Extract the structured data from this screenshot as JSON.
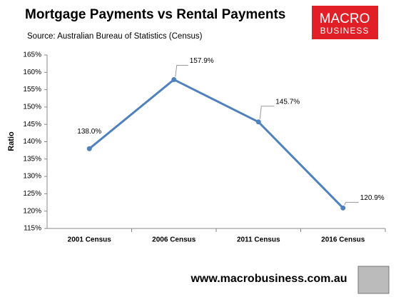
{
  "chart_data": {
    "type": "line",
    "title": "Mortgage Payments vs Rental Payments",
    "subtitle": "Source: Australian Bureau of Statistics (Census)",
    "y_label": "Ratio",
    "categories": [
      "2001 Census",
      "2006 Census",
      "2011 Census",
      "2016 Census"
    ],
    "series": [
      {
        "color": "#4f81bd",
        "values": [
          138.0,
          157.9,
          145.7,
          120.9
        ],
        "value_labels": [
          "138.0%",
          "157.9%",
          "145.7%",
          "120.9%"
        ]
      }
    ],
    "ylim": [
      115,
      165
    ],
    "yticks": [
      {
        "value": 115,
        "label": "115%"
      },
      {
        "value": 120,
        "label": "120%"
      },
      {
        "value": 125,
        "label": "125%"
      },
      {
        "value": 130,
        "label": "130%"
      },
      {
        "value": 135,
        "label": "135%"
      },
      {
        "value": 140,
        "label": "140%"
      },
      {
        "value": 145,
        "label": "145%"
      },
      {
        "value": 150,
        "label": "150%"
      },
      {
        "value": 155,
        "label": "155%"
      },
      {
        "value": 160,
        "label": "160%"
      },
      {
        "value": 165,
        "label": "165%"
      }
    ],
    "grid": false
  },
  "branding": {
    "logo_top": "MACRO",
    "logo_bottom": "BUSINESS",
    "footer": "www.macrobusiness.com.au"
  }
}
